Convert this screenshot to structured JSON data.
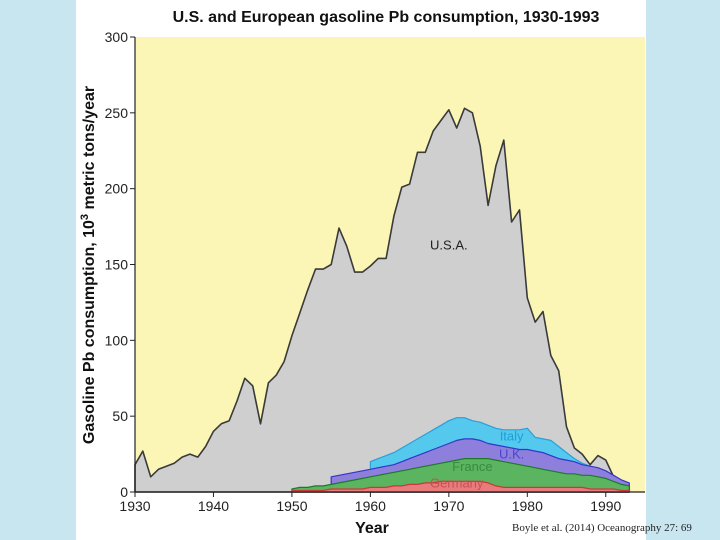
{
  "citation": "Boyle et al. (2014) Oceanography 27: 69",
  "chart_data": {
    "type": "area",
    "title": "U.S. and European gasoline Pb consumption, 1930-1993",
    "xlabel": "Year",
    "ylabel_pre": "Gasoline Pb consumption, 10",
    "ylabel_sup": "3",
    "ylabel_post": " metric tons/year",
    "xlim": [
      1930,
      1995
    ],
    "ylim": [
      0,
      300
    ],
    "xticks": [
      1930,
      1940,
      1950,
      1960,
      1970,
      1980,
      1990
    ],
    "yticks": [
      0,
      50,
      100,
      150,
      200,
      250,
      300
    ],
    "plot_background": "#fbf6b6",
    "series": [
      {
        "name": "U.S.A.",
        "color": "#cfcfcf",
        "stroke": "#3a3a3a",
        "label_color": "#222222",
        "x": [
          1930,
          1931,
          1932,
          1933,
          1934,
          1935,
          1936,
          1937,
          1938,
          1939,
          1940,
          1941,
          1942,
          1943,
          1944,
          1945,
          1946,
          1947,
          1948,
          1949,
          1950,
          1951,
          1952,
          1953,
          1954,
          1955,
          1956,
          1957,
          1958,
          1959,
          1960,
          1961,
          1962,
          1963,
          1964,
          1965,
          1966,
          1967,
          1968,
          1969,
          1970,
          1971,
          1972,
          1973,
          1974,
          1975,
          1976,
          1977,
          1978,
          1979,
          1980,
          1981,
          1982,
          1983,
          1984,
          1985,
          1986,
          1987,
          1988,
          1989,
          1990,
          1991,
          1992,
          1993
        ],
        "y": [
          18,
          27,
          10,
          15,
          17,
          19,
          23,
          25,
          23,
          30,
          40,
          45,
          47,
          60,
          75,
          70,
          45,
          72,
          77,
          86,
          103,
          118,
          133,
          147,
          147,
          150,
          174,
          162,
          145,
          145,
          149,
          154,
          154,
          182,
          201,
          203,
          224,
          224,
          238,
          245,
          252,
          240,
          253,
          250,
          228,
          189,
          215,
          232,
          178,
          186,
          128,
          112,
          119,
          90,
          80,
          43,
          29,
          25,
          18,
          24,
          21,
          10,
          6,
          2
        ],
        "label_pos": [
          1970,
          160
        ]
      },
      {
        "name": "Italy",
        "color": "#55c8ee",
        "stroke": "#2aa0d8",
        "label_color": "#1ba0d8",
        "x": [
          1960,
          1961,
          1962,
          1963,
          1964,
          1965,
          1966,
          1967,
          1968,
          1969,
          1970,
          1971,
          1972,
          1973,
          1974,
          1975,
          1976,
          1977,
          1978,
          1979,
          1980,
          1981,
          1982,
          1983,
          1984,
          1985,
          1986,
          1987,
          1988,
          1989,
          1990,
          1991,
          1992,
          1993
        ],
        "y": [
          20,
          22,
          24,
          26,
          29,
          32,
          35,
          38,
          41,
          44,
          47,
          49,
          49,
          47,
          46,
          44,
          42,
          41,
          41,
          41,
          42,
          36,
          35,
          34,
          30,
          26,
          22,
          19,
          17,
          14,
          11,
          8,
          6,
          5
        ],
        "label_pos": [
          1978,
          34
        ]
      },
      {
        "name": "U.K.",
        "color": "#8e7fdc",
        "stroke": "#3535c8",
        "label_color": "#4848d0",
        "x": [
          1955,
          1956,
          1957,
          1958,
          1959,
          1960,
          1961,
          1962,
          1963,
          1964,
          1965,
          1966,
          1967,
          1968,
          1969,
          1970,
          1971,
          1972,
          1973,
          1974,
          1975,
          1976,
          1977,
          1978,
          1979,
          1980,
          1981,
          1982,
          1983,
          1984,
          1985,
          1986,
          1987,
          1988,
          1989,
          1990,
          1991,
          1992,
          1993
        ],
        "y": [
          10,
          11,
          12,
          13,
          14,
          15,
          16,
          17,
          18,
          20,
          22,
          24,
          26,
          28,
          30,
          32,
          34,
          35,
          35,
          34,
          32,
          31,
          30,
          29,
          28,
          28,
          27,
          26,
          24,
          22,
          21,
          20,
          18,
          17,
          16,
          14,
          11,
          8,
          6
        ],
        "label_pos": [
          1978,
          22
        ]
      },
      {
        "name": "France",
        "color": "#5bb45f",
        "stroke": "#1e7a2a",
        "label_color": "#3a8a40",
        "x": [
          1950,
          1951,
          1952,
          1953,
          1954,
          1955,
          1956,
          1957,
          1958,
          1959,
          1960,
          1961,
          1962,
          1963,
          1964,
          1965,
          1966,
          1967,
          1968,
          1969,
          1970,
          1971,
          1972,
          1973,
          1974,
          1975,
          1976,
          1977,
          1978,
          1979,
          1980,
          1981,
          1982,
          1983,
          1984,
          1985,
          1986,
          1987,
          1988,
          1989,
          1990,
          1991,
          1992,
          1993
        ],
        "y": [
          2,
          3,
          3,
          4,
          4,
          5,
          6,
          7,
          8,
          9,
          10,
          11,
          12,
          13,
          14,
          15,
          16,
          17,
          18,
          19,
          20,
          21,
          22,
          22,
          22,
          22,
          21,
          20,
          19,
          18,
          17,
          16,
          15,
          14,
          13,
          12,
          12,
          11,
          11,
          10,
          9,
          7,
          5,
          4
        ],
        "label_pos": [
          1973,
          14
        ]
      },
      {
        "name": "Germany",
        "color": "#e87b7b",
        "stroke": "#c83a3a",
        "label_color": "#c85050",
        "x": [
          1950,
          1951,
          1952,
          1953,
          1954,
          1955,
          1956,
          1957,
          1958,
          1959,
          1960,
          1961,
          1962,
          1963,
          1964,
          1965,
          1966,
          1967,
          1968,
          1969,
          1970,
          1971,
          1972,
          1973,
          1974,
          1975,
          1976,
          1977,
          1978,
          1979,
          1980,
          1981,
          1982,
          1983,
          1984,
          1985,
          1986,
          1987,
          1988,
          1989,
          1990,
          1991,
          1992,
          1993
        ],
        "y": [
          1,
          1,
          1,
          1,
          1,
          2,
          2,
          2,
          2,
          2,
          3,
          3,
          3,
          4,
          4,
          5,
          5,
          6,
          6,
          7,
          7,
          7,
          7,
          7,
          7,
          6,
          4,
          3,
          3,
          3,
          3,
          3,
          3,
          3,
          3,
          3,
          3,
          3,
          2,
          2,
          2,
          2,
          1,
          1
        ],
        "label_pos": [
          1971,
          3
        ]
      }
    ]
  }
}
